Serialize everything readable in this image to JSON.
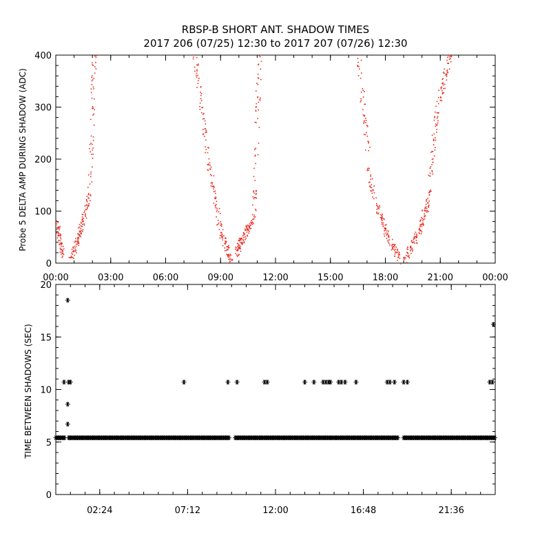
{
  "figure": {
    "title_line1": "RBSP-B SHORT ANT. SHADOW TIMES",
    "title_line2": "2017 206 (07/25) 12:30 to 2017 207 (07/26) 12:30"
  },
  "chart_data": [
    {
      "type": "scatter",
      "ylabel": "Probe 5 DELTA AMP DURING SHADOW (ADC)",
      "xlabel": "",
      "xlim": [
        0,
        24
      ],
      "ylim": [
        0,
        400
      ],
      "x_ticks": [
        0,
        3,
        6,
        9,
        12,
        15,
        18,
        21,
        24
      ],
      "x_tick_labels": [
        "00:00",
        "03:00",
        "06:00",
        "09:00",
        "12:00",
        "15:00",
        "18:00",
        "21:00",
        "00:00"
      ],
      "y_ticks": [
        0,
        100,
        200,
        300,
        400
      ],
      "y_tick_labels": [
        "0",
        "100",
        "200",
        "300",
        "400"
      ],
      "marker_color": "#e8291c",
      "segments": [
        {
          "x0": 0.05,
          "y0": 80,
          "x1": 0.35,
          "y1": 15
        },
        {
          "x0": 0.8,
          "y0": 5,
          "x1": 1.3,
          "y1": 60
        },
        {
          "x0": 1.3,
          "y0": 60,
          "x1": 1.8,
          "y1": 130
        },
        {
          "x0": 1.8,
          "y0": 130,
          "x1": 2.1,
          "y1": 400
        },
        {
          "x0": 7.6,
          "y0": 400,
          "x1": 8.3,
          "y1": 200
        },
        {
          "x0": 8.3,
          "y0": 200,
          "x1": 9.0,
          "y1": 60
        },
        {
          "x0": 9.0,
          "y0": 60,
          "x1": 9.55,
          "y1": 5
        },
        {
          "x0": 9.85,
          "y0": 20,
          "x1": 10.2,
          "y1": 50
        },
        {
          "x0": 10.2,
          "y0": 50,
          "x1": 10.8,
          "y1": 90
        },
        {
          "x0": 10.8,
          "y0": 90,
          "x1": 11.1,
          "y1": 400
        },
        {
          "x0": 16.5,
          "y0": 400,
          "x1": 17.2,
          "y1": 150
        },
        {
          "x0": 17.2,
          "y0": 150,
          "x1": 18.0,
          "y1": 60
        },
        {
          "x0": 18.0,
          "y0": 60,
          "x1": 18.8,
          "y1": 5
        },
        {
          "x0": 19.0,
          "y0": 5,
          "x1": 19.8,
          "y1": 60
        },
        {
          "x0": 19.8,
          "y0": 60,
          "x1": 20.3,
          "y1": 120
        },
        {
          "x0": 20.3,
          "y0": 120,
          "x1": 20.8,
          "y1": 300
        },
        {
          "x0": 20.8,
          "y0": 300,
          "x1": 21.5,
          "y1": 400
        }
      ]
    },
    {
      "type": "scatter",
      "ylabel": "TIME BETWEEN SHADOWS (SEC)",
      "xlabel": "",
      "xlim": [
        0,
        24
      ],
      "ylim": [
        0,
        20
      ],
      "x_ticks": [
        2.4,
        7.2,
        12.0,
        16.8,
        21.6
      ],
      "x_tick_labels": [
        "02:24",
        "07:12",
        "12:00",
        "16:48",
        "21:36"
      ],
      "y_ticks": [
        0,
        5,
        10,
        15,
        20
      ],
      "y_tick_labels": [
        "0",
        "5",
        "10",
        "15",
        "20"
      ],
      "marker": "asterisk",
      "marker_color": "#000000",
      "baseline_value": 5.4,
      "baseline_ranges": [
        [
          0.0,
          0.5
        ],
        [
          0.7,
          9.5
        ],
        [
          9.8,
          18.7
        ],
        [
          19.0,
          24.0
        ]
      ],
      "points": [
        {
          "x": 0.45,
          "y": 10.7
        },
        {
          "x": 0.65,
          "y": 18.5
        },
        {
          "x": 0.65,
          "y": 8.6
        },
        {
          "x": 0.65,
          "y": 6.7
        },
        {
          "x": 0.7,
          "y": 10.7
        },
        {
          "x": 0.8,
          "y": 10.7
        },
        {
          "x": 7.0,
          "y": 10.7
        },
        {
          "x": 9.4,
          "y": 10.7
        },
        {
          "x": 9.9,
          "y": 10.7
        },
        {
          "x": 11.4,
          "y": 10.7
        },
        {
          "x": 11.55,
          "y": 10.7
        },
        {
          "x": 13.6,
          "y": 10.7
        },
        {
          "x": 14.1,
          "y": 10.7
        },
        {
          "x": 14.6,
          "y": 10.7
        },
        {
          "x": 14.75,
          "y": 10.7
        },
        {
          "x": 14.9,
          "y": 10.7
        },
        {
          "x": 15.0,
          "y": 10.7
        },
        {
          "x": 15.45,
          "y": 10.7
        },
        {
          "x": 15.6,
          "y": 10.7
        },
        {
          "x": 15.8,
          "y": 10.7
        },
        {
          "x": 16.4,
          "y": 10.7
        },
        {
          "x": 18.1,
          "y": 10.7
        },
        {
          "x": 18.25,
          "y": 10.7
        },
        {
          "x": 18.5,
          "y": 10.7
        },
        {
          "x": 19.0,
          "y": 10.7
        },
        {
          "x": 19.2,
          "y": 10.7
        },
        {
          "x": 23.7,
          "y": 10.7
        },
        {
          "x": 23.85,
          "y": 10.7
        },
        {
          "x": 23.9,
          "y": 16.2
        }
      ]
    }
  ]
}
